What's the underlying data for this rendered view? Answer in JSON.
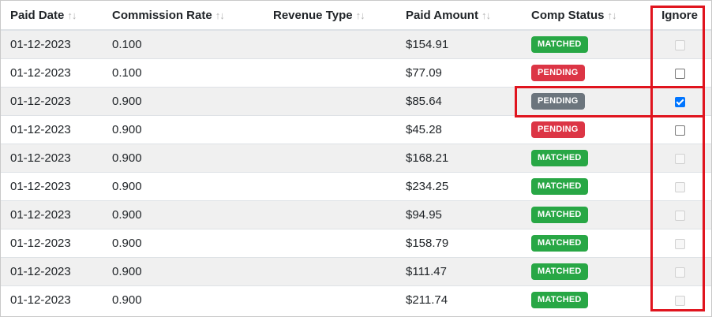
{
  "columns": [
    {
      "key": "paid_date",
      "label": "Paid Date",
      "sortable": true
    },
    {
      "key": "commission_rate",
      "label": "Commission Rate",
      "sortable": true
    },
    {
      "key": "revenue_type",
      "label": "Revenue Type",
      "sortable": true
    },
    {
      "key": "paid_amount",
      "label": "Paid Amount",
      "sortable": true
    },
    {
      "key": "comp_status",
      "label": "Comp Status",
      "sortable": true
    },
    {
      "key": "ignore",
      "label": "Ignore",
      "sortable": false
    }
  ],
  "sort_glyph": "↑↓",
  "rows": [
    {
      "paid_date": "01-12-2023",
      "commission_rate": "0.100",
      "revenue_type": "",
      "paid_amount": "$154.91",
      "comp_status": "MATCHED",
      "ignore": "disabled"
    },
    {
      "paid_date": "01-12-2023",
      "commission_rate": "0.100",
      "revenue_type": "",
      "paid_amount": "$77.09",
      "comp_status": "PENDING",
      "ignore": "unchecked"
    },
    {
      "paid_date": "01-12-2023",
      "commission_rate": "0.900",
      "revenue_type": "",
      "paid_amount": "$85.64",
      "comp_status": "PENDING",
      "ignore": "checked"
    },
    {
      "paid_date": "01-12-2023",
      "commission_rate": "0.900",
      "revenue_type": "",
      "paid_amount": "$45.28",
      "comp_status": "PENDING",
      "ignore": "unchecked"
    },
    {
      "paid_date": "01-12-2023",
      "commission_rate": "0.900",
      "revenue_type": "",
      "paid_amount": "$168.21",
      "comp_status": "MATCHED",
      "ignore": "disabled"
    },
    {
      "paid_date": "01-12-2023",
      "commission_rate": "0.900",
      "revenue_type": "",
      "paid_amount": "$234.25",
      "comp_status": "MATCHED",
      "ignore": "disabled"
    },
    {
      "paid_date": "01-12-2023",
      "commission_rate": "0.900",
      "revenue_type": "",
      "paid_amount": "$94.95",
      "comp_status": "MATCHED",
      "ignore": "disabled"
    },
    {
      "paid_date": "01-12-2023",
      "commission_rate": "0.900",
      "revenue_type": "",
      "paid_amount": "$158.79",
      "comp_status": "MATCHED",
      "ignore": "disabled"
    },
    {
      "paid_date": "01-12-2023",
      "commission_rate": "0.900",
      "revenue_type": "",
      "paid_amount": "$111.47",
      "comp_status": "MATCHED",
      "ignore": "disabled"
    },
    {
      "paid_date": "01-12-2023",
      "commission_rate": "0.900",
      "revenue_type": "",
      "paid_amount": "$211.74",
      "comp_status": "MATCHED",
      "ignore": "disabled"
    }
  ],
  "colors": {
    "matched": "#28a745",
    "pending": "#dc3545",
    "pending_selected": "#6c757d",
    "highlight": "#e0141e",
    "checkbox_checked": "#0075ff"
  }
}
